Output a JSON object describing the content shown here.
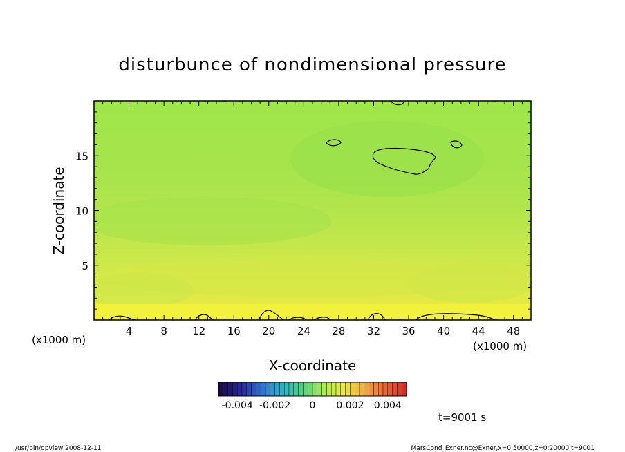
{
  "chart_data": {
    "type": "heatmap",
    "title": "disturbunce of nondimensional pressure",
    "xlabel": "X-coordinate",
    "ylabel": "Z-coordinate",
    "x_unit_left": "(x1000 m)",
    "x_unit_right": "(x1000 m)",
    "xlim": [
      0,
      50
    ],
    "ylim": [
      0,
      20
    ],
    "x_ticks": [
      4,
      8,
      12,
      16,
      20,
      24,
      28,
      32,
      36,
      40,
      44,
      48
    ],
    "y_ticks": [
      5,
      10,
      15
    ],
    "colorbar": {
      "range": [
        -0.005,
        0.005
      ],
      "levels": 40,
      "tick_values": [
        -0.004,
        -0.002,
        0,
        0.002,
        0.004
      ],
      "tick_labels": [
        "-0.004",
        "-0.002",
        "0",
        "0.002",
        "0.004"
      ],
      "colors": [
        "#1a0a4a",
        "#2a2a9a",
        "#2f6fd0",
        "#33b0c8",
        "#52d080",
        "#a8e858",
        "#e8e84a",
        "#f0b040",
        "#e86a3a",
        "#d0302a"
      ]
    },
    "field_description_values": {
      "background_level": 0.0006,
      "surface_level": 0.0015
    },
    "contour_level": 0.0,
    "time_label": "t=9001 s"
  },
  "footer": {
    "left": "/usr/bin/gpview   2008-12-11",
    "right": "MarsCond_Exner.nc@Exner,x=0:50000,z=0:20000,t=9001"
  }
}
